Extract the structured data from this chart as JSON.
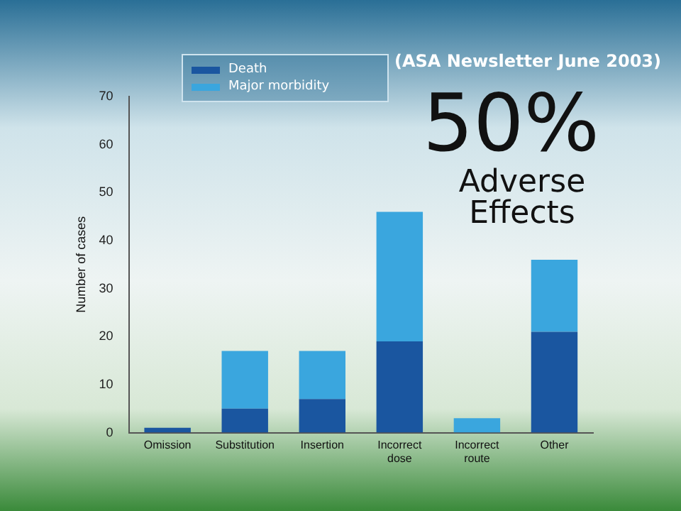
{
  "chart_data": {
    "type": "bar",
    "stacked": true,
    "ylabel": "Number of cases",
    "categories": [
      "Omission",
      "Substitution",
      "Insertion",
      "Incorrect dose",
      "Incorrect route",
      "Other"
    ],
    "series": [
      {
        "name": "Death",
        "color": "#1a56a0",
        "values": [
          1,
          5,
          7,
          19,
          0,
          21
        ]
      },
      {
        "name": "Major morbidity",
        "color": "#3aa6de",
        "values": [
          0,
          12,
          10,
          27,
          3,
          15
        ]
      }
    ],
    "ylim": [
      0,
      70
    ],
    "yticks": [
      0,
      10,
      20,
      30,
      40,
      50,
      60,
      70
    ],
    "grid": false,
    "legend": "top left",
    "annotations": [
      "(ASA Newsletter June 2003)",
      "50%",
      "Adverse Effects"
    ]
  }
}
